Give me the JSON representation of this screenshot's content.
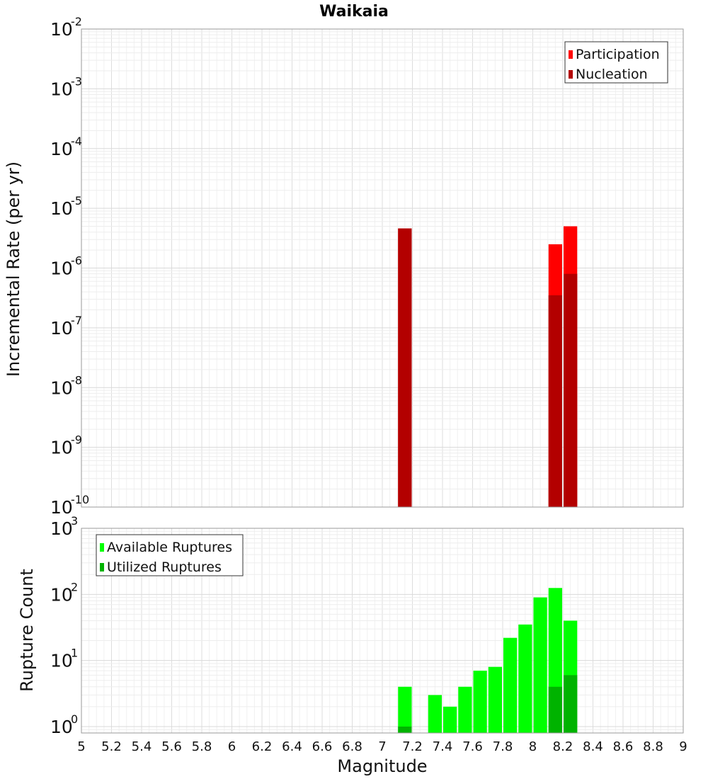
{
  "chart_data": [
    {
      "type": "bar",
      "title": "Waikaia",
      "xlabel": "",
      "ylabel": "Incremental Rate (per yr)",
      "yscale": "log",
      "ylim": [
        1e-10,
        0.01
      ],
      "xlim": [
        5,
        9
      ],
      "grid": true,
      "legend_position": "top-right",
      "y_tick_exponents": [
        "-10",
        "-9",
        "-8",
        "-7",
        "-6",
        "-5",
        "-4",
        "-3",
        "-2"
      ],
      "y_tick_base": "10",
      "series": [
        {
          "name": "Participation",
          "color": "#ff0000",
          "x": [
            7.15,
            8.15,
            8.25
          ],
          "values": [
            4.6e-06,
            2.5e-06,
            5e-06
          ]
        },
        {
          "name": "Nucleation",
          "color": "#b30000",
          "x": [
            7.15,
            8.15,
            8.25
          ],
          "values": [
            4.6e-06,
            3.5e-07,
            8e-07
          ]
        }
      ]
    },
    {
      "type": "bar",
      "title": "",
      "xlabel": "Magnitude",
      "ylabel": "Rupture Count",
      "yscale": "log",
      "ylim": [
        0.8,
        1000
      ],
      "xlim": [
        5,
        9
      ],
      "grid": true,
      "legend_position": "top-left",
      "y_tick_exponents": [
        "0",
        "1",
        "2",
        "3"
      ],
      "y_tick_base": "10",
      "x_tick_labels": [
        "5",
        "5.2",
        "5.4",
        "5.6",
        "5.8",
        "6",
        "6.2",
        "6.4",
        "6.6",
        "6.8",
        "7",
        "7.2",
        "7.4",
        "7.6",
        "7.8",
        "8",
        "8.2",
        "8.4",
        "8.6",
        "8.8",
        "9"
      ],
      "series": [
        {
          "name": "Available Ruptures",
          "color": "#00ff00",
          "x": [
            7.15,
            7.35,
            7.45,
            7.55,
            7.65,
            7.75,
            7.85,
            7.95,
            8.05,
            8.15,
            8.25
          ],
          "values": [
            4,
            3,
            2,
            4,
            7,
            8,
            22,
            35,
            90,
            125,
            40
          ]
        },
        {
          "name": "Utilized Ruptures",
          "color": "#00b300",
          "x": [
            7.15,
            8.15,
            8.25
          ],
          "values": [
            1,
            4,
            6
          ]
        }
      ]
    }
  ]
}
